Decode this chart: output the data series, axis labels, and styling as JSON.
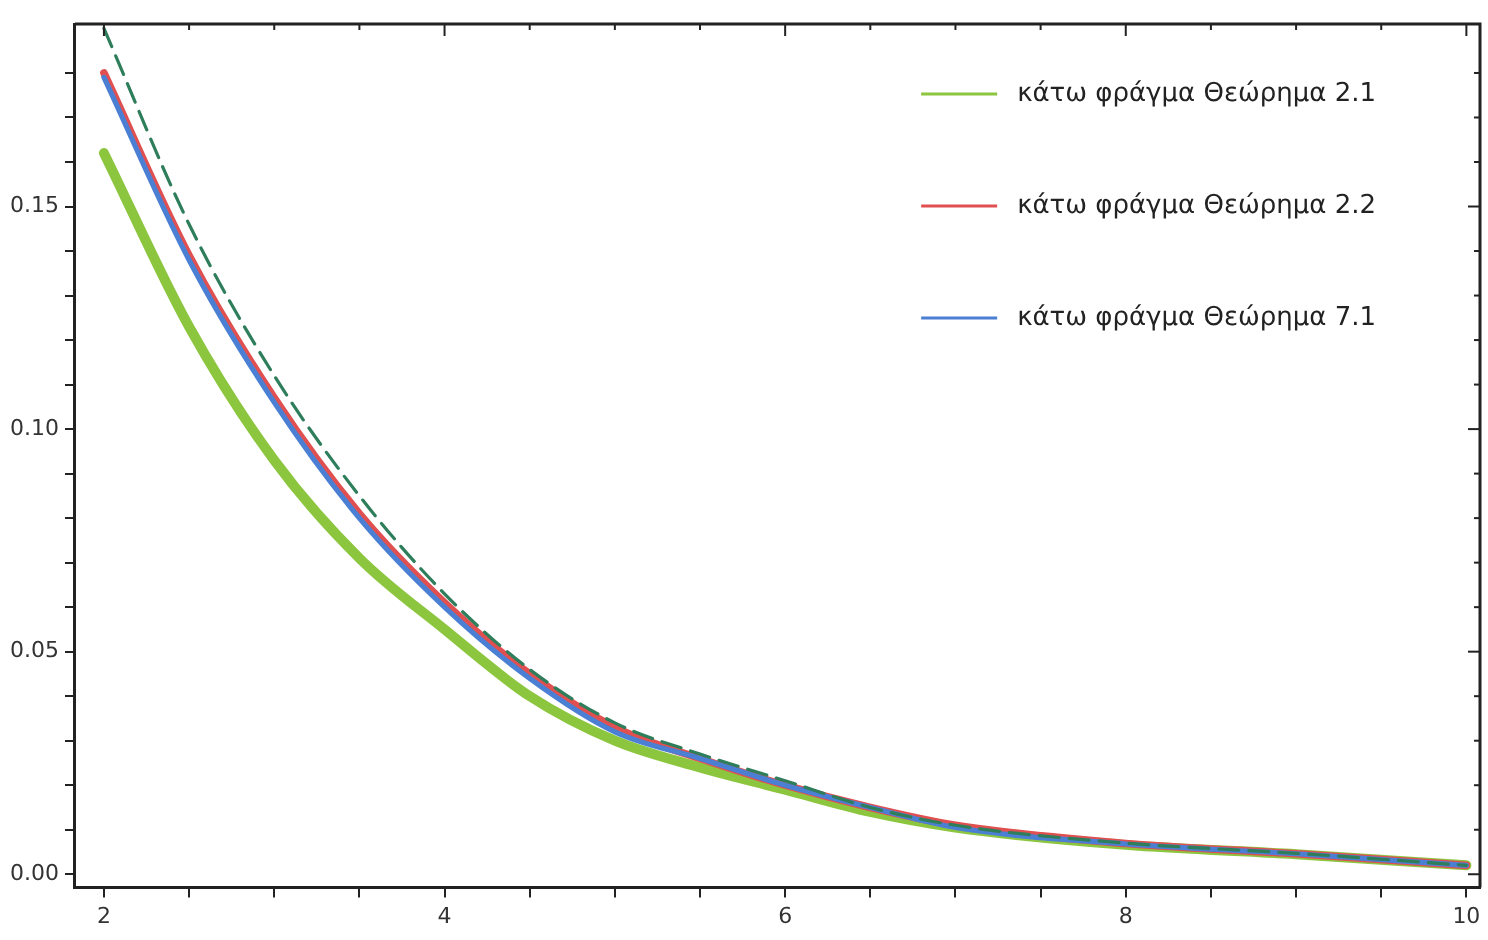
{
  "chart_data": {
    "type": "line",
    "x": [
      2,
      2.5,
      3,
      3.5,
      4,
      4.5,
      5,
      5.5,
      6,
      6.5,
      7,
      8,
      9,
      10
    ],
    "series": [
      {
        "name": "κάτω φράγμα Θεώρημα 2.1",
        "color": "#8cc63f",
        "values": [
          0.162,
          0.123,
          0.093,
          0.071,
          0.055,
          0.04,
          0.03,
          0.024,
          0.019,
          0.014,
          0.0105,
          0.0066,
          0.0045,
          0.002
        ]
      },
      {
        "name": "κάτω φράγμα Θεώρημα 2.2",
        "color": "#e05050",
        "values": [
          0.18,
          0.139,
          0.107,
          0.081,
          0.061,
          0.045,
          0.033,
          0.026,
          0.02,
          0.015,
          0.011,
          0.0069,
          0.0046,
          0.002
        ]
      },
      {
        "name": "κάτω φράγμα Θεώρημα 7.1",
        "color": "#4a7fd4",
        "values": [
          0.179,
          0.138,
          0.106,
          0.08,
          0.06,
          0.044,
          0.032,
          0.026,
          0.02,
          0.015,
          0.0105,
          0.0068,
          0.0046,
          0.002
        ]
      },
      {
        "color": "#2e7d5b",
        "line_style": "dashed",
        "values": [
          0.19,
          0.146,
          0.112,
          0.085,
          0.063,
          0.046,
          0.034,
          0.027,
          0.021,
          0.015,
          0.011,
          0.007,
          0.0047,
          0.002
        ]
      }
    ],
    "xlim": [
      1.83,
      10.08
    ],
    "xticks": [
      2,
      {
        "value": 2.5,
        "label": null
      },
      {
        "value": 3,
        "label": null
      },
      {
        "value": 3.5,
        "label": null
      },
      4,
      {
        "value": 4.5,
        "label": null
      },
      {
        "value": 5,
        "label": null
      },
      {
        "value": 5.5,
        "label": null
      },
      6,
      {
        "value": 6.5,
        "label": null
      },
      {
        "value": 7,
        "label": null
      },
      {
        "value": 7.5,
        "label": null
      },
      8,
      {
        "value": 8.5,
        "label": null
      },
      {
        "value": 9,
        "label": null
      },
      {
        "value": 9.5,
        "label": null
      },
      10
    ],
    "ylim": [
      -0.003,
      0.191
    ],
    "yticks": [
      {
        "value": 0,
        "label": "0.00"
      },
      {
        "value": 0.01,
        "label": null
      },
      {
        "value": 0.02,
        "label": null
      },
      {
        "value": 0.03,
        "label": null
      },
      {
        "value": 0.04,
        "label": null
      },
      {
        "value": 0.05,
        "label": "0.05"
      },
      {
        "value": 0.06,
        "label": null
      },
      {
        "value": 0.07,
        "label": null
      },
      {
        "value": 0.08,
        "label": null
      },
      {
        "value": 0.09,
        "label": null
      },
      {
        "value": 0.1,
        "label": "0.10"
      },
      {
        "value": 0.11,
        "label": null
      },
      {
        "value": 0.12,
        "label": null
      },
      {
        "value": 0.13,
        "label": null
      },
      {
        "value": 0.14,
        "label": null
      },
      {
        "value": 0.15,
        "label": "0.15"
      },
      {
        "value": 0.16,
        "label": null
      },
      {
        "value": 0.17,
        "label": null
      },
      {
        "value": 0.18,
        "label": null
      }
    ],
    "grid": false,
    "legend": "top right",
    "marker": "none",
    "line_style": "solid"
  }
}
